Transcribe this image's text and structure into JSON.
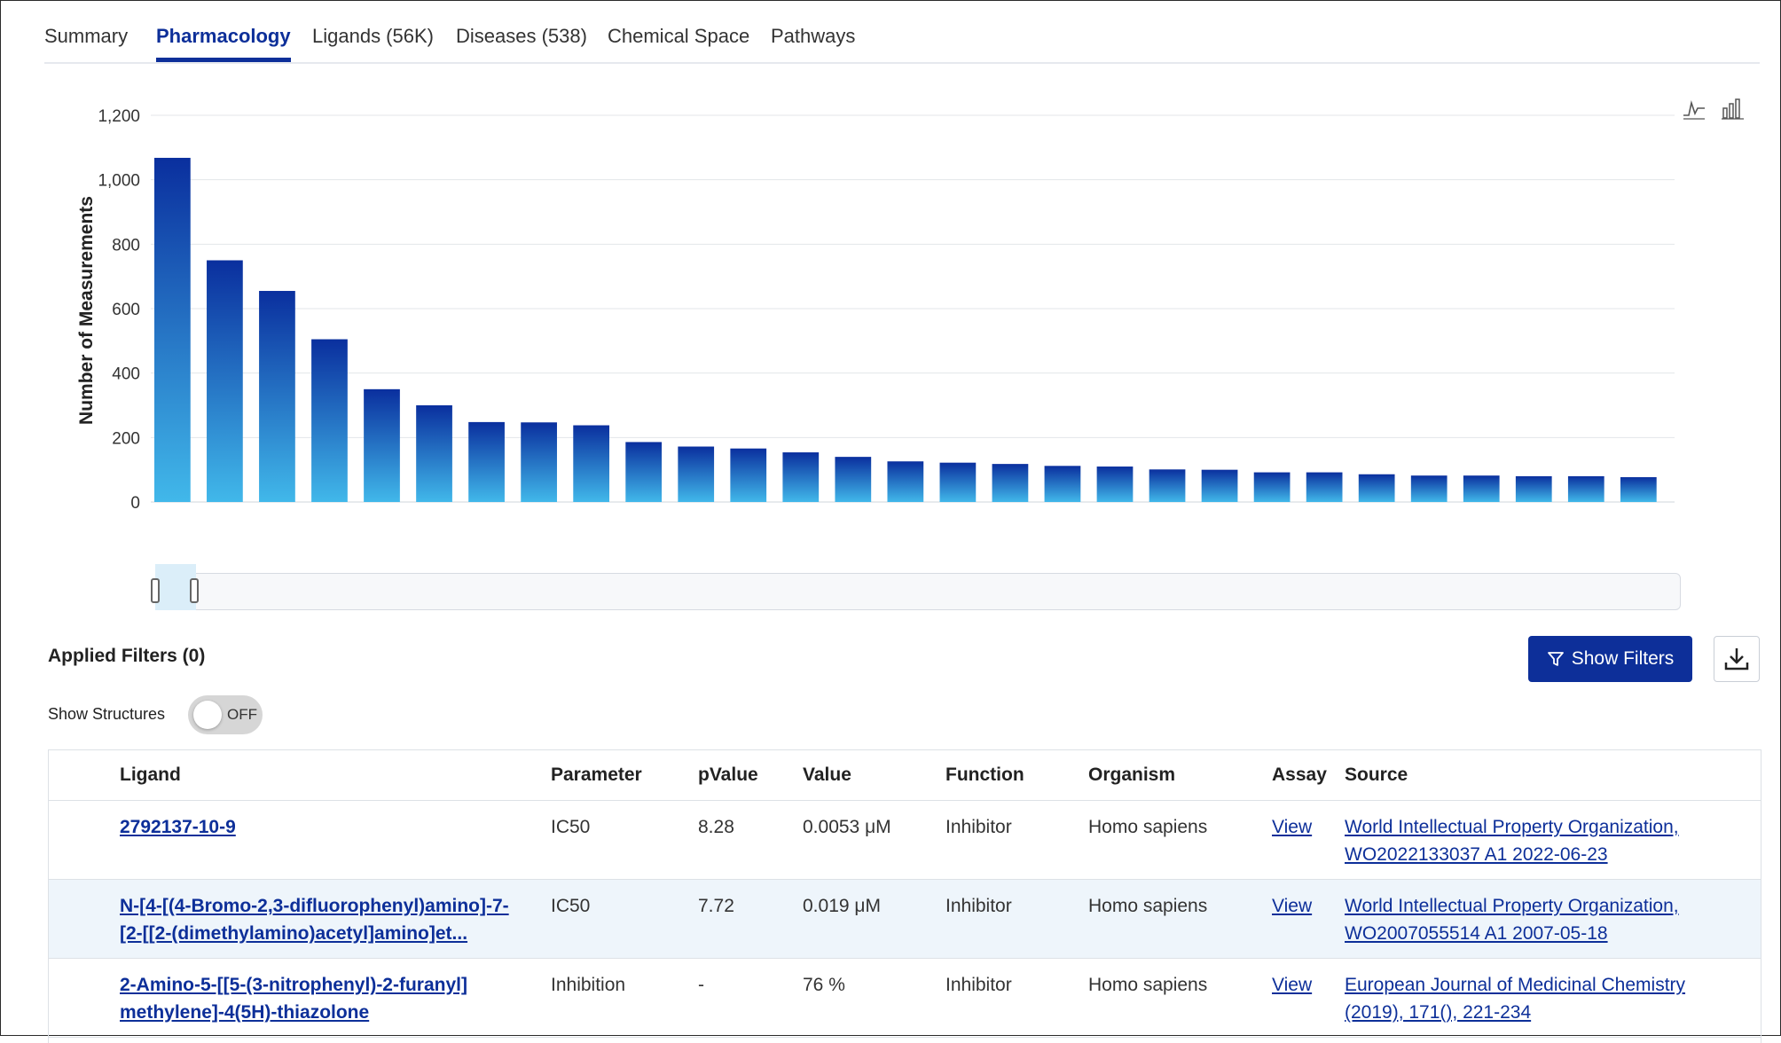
{
  "tabs": [
    {
      "label": "Summary"
    },
    {
      "label": "Pharmacology"
    },
    {
      "label": "Ligands (56K)"
    },
    {
      "label": "Diseases (538)"
    },
    {
      "label": "Chemical Space"
    },
    {
      "label": "Pathways"
    }
  ],
  "active_tab": "Pharmacology",
  "chart_data": {
    "type": "bar",
    "ylabel": "Number of Measurements",
    "ylim": [
      0,
      1200
    ],
    "yticks": [
      0,
      200,
      400,
      600,
      800,
      1000,
      1200
    ],
    "ytick_labels": [
      "0",
      "200",
      "400",
      "600",
      "800",
      "1,000",
      "1,200"
    ],
    "values": [
      1068,
      750,
      655,
      505,
      350,
      300,
      248,
      247,
      238,
      186,
      172,
      166,
      154,
      140,
      126,
      122,
      118,
      112,
      110,
      101,
      100,
      92,
      92,
      86,
      82,
      82,
      80,
      80,
      77
    ],
    "gradient": {
      "top": "#0a2f9e",
      "bottom": "#41b8ea"
    },
    "grid": true
  },
  "filters": {
    "applied_label": "Applied Filters (0)",
    "show_filters_label": "Show Filters",
    "show_structures_label": "Show Structures",
    "toggle_state": "OFF"
  },
  "table": {
    "headers": [
      "Ligand",
      "Parameter",
      "pValue",
      "Value",
      "Function",
      "Organism",
      "Assay",
      "Source"
    ],
    "rows": [
      {
        "ligand_lines": [
          "2792137-10-9"
        ],
        "parameter": "IC50",
        "pvalue": "8.28",
        "value": "0.0053 μM",
        "function": "Inhibitor",
        "organism": "Homo sapiens",
        "assay": "View",
        "source_lines": [
          "World Intellectual Property Organization,",
          "WO2022133037 A1 2022-06-23"
        ]
      },
      {
        "ligand_lines": [
          "N-[4-[(4-Bromo-2,3-difluorophenyl)amino]-7-",
          "[2-[[2-(dimethylamino)acetyl]amino]et..."
        ],
        "parameter": "IC50",
        "pvalue": "7.72",
        "value": "0.019 μM",
        "function": "Inhibitor",
        "organism": "Homo sapiens",
        "assay": "View",
        "source_lines": [
          "World Intellectual Property Organization,",
          "WO2007055514 A1 2007-05-18"
        ]
      },
      {
        "ligand_lines": [
          "2-Amino-5-[[5-(3-nitrophenyl)-2-furanyl]",
          "methylene]-4(5H)-thiazolone"
        ],
        "parameter": "Inhibition",
        "pvalue": "-",
        "value": "76 %",
        "function": "Inhibitor",
        "organism": "Homo sapiens",
        "assay": "View",
        "source_lines": [
          "European Journal of Medicinal Chemistry",
          "(2019), 171(), 221-234"
        ]
      }
    ]
  }
}
